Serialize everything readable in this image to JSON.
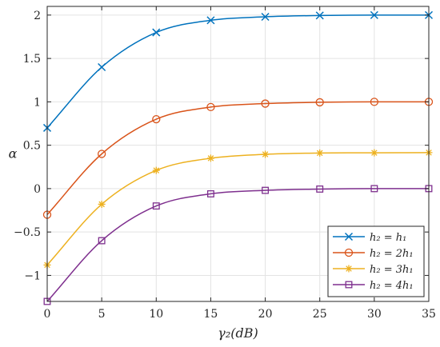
{
  "chart_data": {
    "type": "line",
    "title": "",
    "xlabel": "γ₂(dB)",
    "ylabel": "α",
    "xlim": [
      0,
      35
    ],
    "ylim": [
      -1.3,
      2.1
    ],
    "x": [
      0,
      5,
      10,
      15,
      20,
      25,
      30,
      35
    ],
    "x_ticks": [
      0,
      5,
      10,
      15,
      20,
      25,
      30,
      35
    ],
    "x_tick_labels": [
      "0",
      "5",
      "10",
      "15",
      "20",
      "25",
      "30",
      "35"
    ],
    "y_ticks": [
      -1,
      -0.5,
      0,
      0.5,
      1,
      1.5,
      2
    ],
    "y_tick_labels": [
      "−1",
      "−0.5",
      "0",
      "0.5",
      "1",
      "1.5",
      "2"
    ],
    "grid": true,
    "legend_position": "bottom-right",
    "series": [
      {
        "name": "h₂ = h₁",
        "color": "#0072BD",
        "marker": "x",
        "values": [
          0.7,
          1.4,
          1.8,
          1.94,
          1.98,
          1.995,
          2.0,
          2.0
        ]
      },
      {
        "name": "h₂ = 2h₁",
        "color": "#D95319",
        "marker": "circle",
        "values": [
          -0.3,
          0.4,
          0.8,
          0.94,
          0.98,
          0.995,
          1.0,
          1.0
        ]
      },
      {
        "name": "h₂ = 3h₁",
        "color": "#EDB120",
        "marker": "asterisk",
        "values": [
          -0.88,
          -0.18,
          0.21,
          0.35,
          0.395,
          0.41,
          0.413,
          0.415
        ]
      },
      {
        "name": "h₂ = 4h₁",
        "color": "#7E2F8E",
        "marker": "square",
        "values": [
          -1.3,
          -0.6,
          -0.2,
          -0.06,
          -0.02,
          -0.005,
          0.0,
          0.0
        ]
      }
    ]
  }
}
